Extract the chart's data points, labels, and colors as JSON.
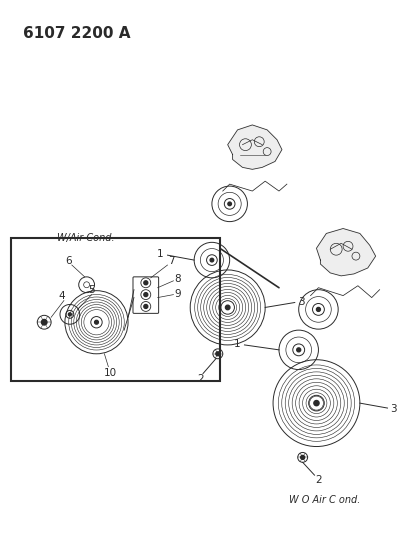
{
  "title": "6107 2200 A",
  "background_color": "#ffffff",
  "line_color": "#2a2a2a",
  "text_color": "#2a2a2a",
  "label_wair_cond": "W/Air Cond.",
  "label_wo_air_cond": "W O Air C ond.",
  "title_fontsize": 11,
  "label_fontsize": 7,
  "num_fontsize": 7.5
}
